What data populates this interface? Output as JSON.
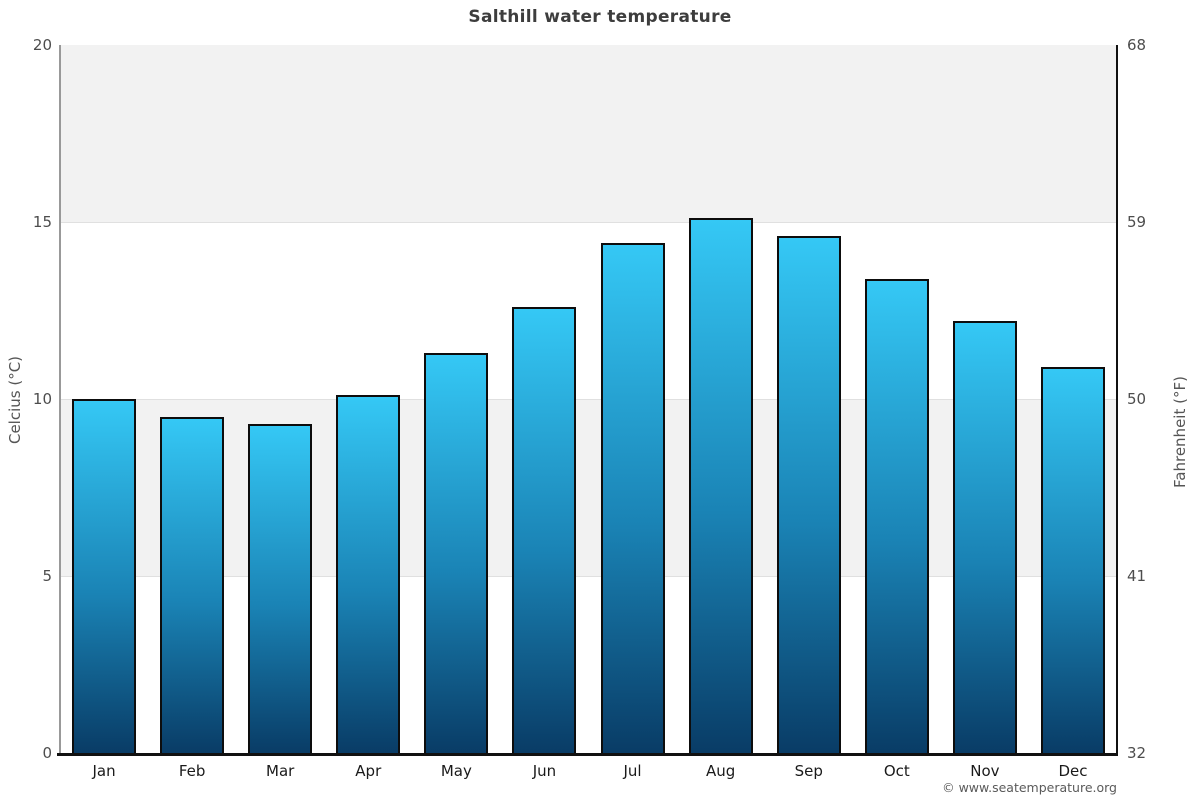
{
  "title": "Salthill water temperature",
  "watermark": "© www.seatemperature.org",
  "axes": {
    "left_label": "Celcius (°C)",
    "right_label": "Fahrenheit (°F)",
    "left_ticks": [
      0,
      5,
      10,
      15,
      20
    ],
    "right_ticks": [
      32,
      41,
      50,
      59,
      68
    ]
  },
  "colors": {
    "bar_gradient_top": "#35c8f5",
    "bar_gradient_bottom": "#093c66",
    "bar_border": "#0d0d0d",
    "band_fill": "#f2f2f2",
    "left_axis": "#999999",
    "right_axis": "#111111",
    "title_text": "#3d3d3d"
  },
  "chart_data": {
    "type": "bar",
    "title": "Salthill water temperature",
    "categories": [
      "Jan",
      "Feb",
      "Mar",
      "Apr",
      "May",
      "Jun",
      "Jul",
      "Aug",
      "Sep",
      "Oct",
      "Nov",
      "Dec"
    ],
    "values": [
      10.0,
      9.5,
      9.3,
      10.1,
      11.3,
      12.6,
      14.4,
      15.1,
      14.6,
      13.4,
      12.2,
      10.9
    ],
    "xlabel": "",
    "ylabel": "Celcius (°C)",
    "y2label": "Fahrenheit (°F)",
    "ylim": [
      0,
      20
    ],
    "y2lim": [
      32,
      68
    ],
    "gridlines": [
      5,
      10,
      15
    ],
    "gray_bands": [
      [
        5,
        10
      ],
      [
        15,
        20
      ]
    ],
    "legend": "none",
    "annotation": "© www.seatemperature.org"
  }
}
